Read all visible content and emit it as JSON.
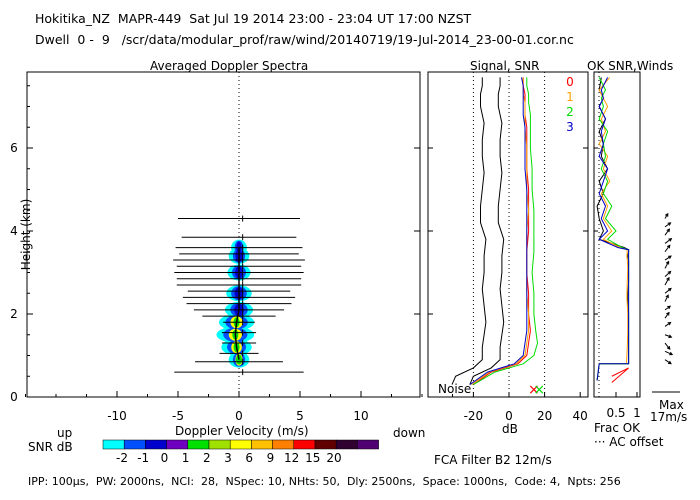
{
  "header": {
    "line1": "Hokitika_NZ  MAPR-449  Sat Jul 19 2014 23:00 - 23:04 UT 17:00 NZST",
    "line2": "Dwell  0 -  9   /scr/data/modular_prof/raw/wind/20140719/19-Jul-2014_23-00-01.cor.nc"
  },
  "footer": {
    "params": "IPP: 100μs,  PW: 2000ns,  NCI:  28,  NSpec: 10, NHts: 50,  Dly: 2500ns,  Space: 1000ns,  Code: 4,  Npts: 256",
    "filter": "FCA Filter B2 12m/s"
  },
  "colors": {
    "snr_scale": [
      "#00ffff",
      "#0050ff",
      "#0000cc",
      "#7000c0",
      "#00e000",
      "#a0e000",
      "#ffff00",
      "#ffc000",
      "#ff8000",
      "#ff0000",
      "#600000",
      "#300030",
      "#500070"
    ],
    "trace_0": "#ff0000",
    "trace_1": "#ffa000",
    "trace_2": "#00dd00",
    "trace_3": "#0000cc",
    "signal_black": "#000000"
  },
  "chart_data": [
    {
      "type": "heatmap",
      "title": "Averaged Doppler Spectra",
      "xlabel": "Doppler Velocity (m/s)",
      "ylabel": "Height (km)",
      "xlim": [
        -20,
        20
      ],
      "ylim": [
        0,
        7.8
      ],
      "x_ticks": [
        -10,
        -5,
        0,
        5,
        10
      ],
      "y_ticks": [
        0,
        2,
        4,
        6
      ],
      "x_ticks_labels": [
        "-10",
        "-5",
        "0",
        "5",
        "10"
      ],
      "y_ticks_labels": [
        "0",
        "2",
        "4",
        "6"
      ],
      "left_label": "up",
      "right_label": "down",
      "colorbar_label": "SNR dB",
      "colorbar_ticks": [
        "-2",
        "-1",
        "0",
        "1",
        "2",
        "3",
        "6",
        "9",
        "12",
        "15",
        "20"
      ],
      "noise_bars": [
        {
          "h": 0.6,
          "half": 5.3
        },
        {
          "h": 0.85,
          "half": 3.6
        },
        {
          "h": 1.05,
          "half": 1.6
        },
        {
          "h": 1.3,
          "half": 1.4
        },
        {
          "h": 1.55,
          "half": 1.4
        },
        {
          "h": 1.8,
          "half": 1.3
        },
        {
          "h": 1.95,
          "half": 3.0
        },
        {
          "h": 2.1,
          "half": 3.7
        },
        {
          "h": 2.25,
          "half": 4.3
        },
        {
          "h": 2.4,
          "half": 4.6
        },
        {
          "h": 2.55,
          "half": 4.2
        },
        {
          "h": 2.7,
          "half": 5.1
        },
        {
          "h": 2.85,
          "half": 5.1
        },
        {
          "h": 3.0,
          "half": 5.3
        },
        {
          "h": 3.15,
          "half": 5.1
        },
        {
          "h": 3.3,
          "half": 5.4
        },
        {
          "h": 3.45,
          "half": 4.9
        },
        {
          "h": 3.6,
          "half": 5.2
        },
        {
          "h": 3.85,
          "half": 4.7
        },
        {
          "h": 4.3,
          "half": 5.0
        }
      ],
      "spectrum_core": [
        {
          "h": 0.9,
          "v": 0.0,
          "w": 0.6
        },
        {
          "h": 1.2,
          "v": -0.2,
          "w": 1.0
        },
        {
          "h": 1.5,
          "v": -0.3,
          "w": 1.3
        },
        {
          "h": 1.8,
          "v": -0.2,
          "w": 1.2
        },
        {
          "h": 2.1,
          "v": 0.0,
          "w": 0.9
        },
        {
          "h": 2.5,
          "v": 0.0,
          "w": 0.8
        },
        {
          "h": 3.0,
          "v": 0.0,
          "w": 0.7
        },
        {
          "h": 3.4,
          "v": 0.0,
          "w": 0.6
        },
        {
          "h": 3.6,
          "v": 0.0,
          "w": 0.4
        }
      ]
    },
    {
      "type": "line",
      "title": "Signal, SNR",
      "xlabel": "dB",
      "ylabel": "Height (km)",
      "xlim": [
        -25,
        40
      ],
      "ylim": [
        0,
        7.8
      ],
      "x_ticks_labels": [
        "-20",
        "0",
        "20",
        "40"
      ],
      "noise_label": "Noise",
      "legend": [
        "0",
        "1",
        "2",
        "3"
      ],
      "series": [
        {
          "name": "Signal",
          "x": [
            -22,
            -20,
            -10,
            -5,
            -5,
            -4,
            -3,
            -4,
            -5,
            -4,
            -4,
            -3,
            -6,
            -6,
            -5,
            -4,
            -5,
            -5,
            -4,
            -6,
            -6,
            -5,
            -5
          ],
          "y": [
            0.3,
            0.5,
            0.7,
            0.9,
            1.2,
            1.5,
            1.8,
            2.2,
            2.6,
            3.0,
            3.4,
            3.8,
            4.2,
            4.6,
            5.0,
            5.4,
            5.8,
            6.2,
            6.6,
            7.0,
            7.3,
            7.5,
            7.7
          ]
        },
        {
          "name": "0",
          "x": [
            -20,
            -10,
            5,
            10,
            11,
            12,
            11,
            11,
            10,
            10,
            11,
            11,
            11,
            10,
            10,
            10,
            9,
            9,
            9,
            8,
            8
          ],
          "y": [
            0.3,
            0.6,
            0.8,
            1.0,
            1.3,
            1.6,
            2.0,
            2.5,
            3.0,
            3.5,
            4.0,
            4.5,
            5.0,
            5.5,
            6.0,
            6.5,
            6.8,
            7.1,
            7.3,
            7.5,
            7.7
          ]
        },
        {
          "name": "1",
          "x": [
            -21,
            -11,
            4,
            9,
            10,
            11,
            11,
            10,
            10,
            10,
            10,
            11,
            10,
            10,
            10,
            9,
            9,
            9,
            8,
            8,
            8
          ],
          "y": [
            0.3,
            0.6,
            0.8,
            1.0,
            1.3,
            1.6,
            2.0,
            2.5,
            3.0,
            3.5,
            4.0,
            4.5,
            5.0,
            5.5,
            6.0,
            6.5,
            6.8,
            7.1,
            7.3,
            7.5,
            7.7
          ]
        },
        {
          "name": "2",
          "x": [
            -20,
            -8,
            8,
            14,
            16,
            15,
            14,
            14,
            13,
            14,
            14,
            14,
            13,
            13,
            12,
            12,
            12,
            11,
            11,
            10,
            10
          ],
          "y": [
            0.3,
            0.6,
            0.8,
            1.0,
            1.3,
            1.6,
            2.0,
            2.5,
            3.0,
            3.5,
            4.0,
            4.5,
            5.0,
            5.5,
            6.0,
            6.5,
            6.8,
            7.1,
            7.3,
            7.5,
            7.7
          ]
        },
        {
          "name": "3",
          "x": [
            -22,
            -12,
            3,
            8,
            9,
            10,
            10,
            10,
            10,
            10,
            10,
            10,
            10,
            9,
            9,
            9,
            8,
            8,
            8,
            8,
            7
          ],
          "y": [
            0.3,
            0.6,
            0.8,
            1.0,
            1.3,
            1.6,
            2.0,
            2.5,
            3.0,
            3.5,
            4.0,
            4.5,
            5.0,
            5.5,
            6.0,
            6.5,
            6.8,
            7.1,
            7.3,
            7.5,
            7.7
          ]
        }
      ],
      "markers": [
        {
          "name": "0",
          "x": 14
        },
        {
          "name": "2",
          "x": 17
        }
      ]
    },
    {
      "type": "line",
      "title": "OK SNR,Winds",
      "xlabel": "Frac OK",
      "xlim": [
        0,
        1.2
      ],
      "ylim": [
        0,
        7.8
      ],
      "x_ticks_labels": [
        "0.5",
        "1"
      ],
      "footnote": "··· AC offset",
      "wind_max_label": "Max",
      "wind_max_value": "17m/s",
      "series": [
        {
          "name": "0",
          "x": [
            0.05,
            0.1,
            0.8,
            0.8,
            0.8,
            0.8,
            0.78,
            0.8,
            0.8,
            0.8,
            0.78,
            0.8,
            0.8,
            0.8,
            0.7,
            0.1,
            0.2,
            0.1,
            0.05,
            0.2,
            0.1,
            0.3,
            0.15,
            0.2,
            0.1,
            0.25,
            0.1,
            0.2,
            0.1,
            0.15
          ],
          "y": [
            0.4,
            0.8,
            0.8,
            1.2,
            1.6,
            2.0,
            2.4,
            2.8,
            3.1,
            3.3,
            3.4,
            3.5,
            3.5,
            3.55,
            3.6,
            3.8,
            4.0,
            4.3,
            4.6,
            4.9,
            5.2,
            5.5,
            5.8,
            6.1,
            6.4,
            6.7,
            7.0,
            7.2,
            7.4,
            7.7
          ]
        },
        {
          "name": "1",
          "x": [
            0.05,
            0.1,
            0.75,
            0.77,
            0.78,
            0.78,
            0.76,
            0.77,
            0.78,
            0.77,
            0.76,
            0.77,
            0.77,
            0.76,
            0.6,
            0.2,
            0.4,
            0.2,
            0.3,
            0.15,
            0.35,
            0.2,
            0.3,
            0.1,
            0.25,
            0.15,
            0.3,
            0.2,
            0.1,
            0.35
          ],
          "y": [
            0.4,
            0.8,
            0.8,
            1.2,
            1.6,
            2.0,
            2.4,
            2.8,
            3.1,
            3.3,
            3.4,
            3.5,
            3.5,
            3.55,
            3.6,
            3.8,
            4.0,
            4.3,
            4.6,
            4.9,
            5.2,
            5.5,
            5.8,
            6.1,
            6.4,
            6.7,
            7.0,
            7.2,
            7.4,
            7.7
          ]
        },
        {
          "name": "2",
          "x": [
            0.05,
            0.1,
            0.8,
            0.8,
            0.8,
            0.8,
            0.8,
            0.8,
            0.8,
            0.8,
            0.8,
            0.8,
            0.8,
            0.8,
            0.65,
            0.3,
            0.5,
            0.25,
            0.4,
            0.2,
            0.3,
            0.15,
            0.25,
            0.2,
            0.3,
            0.1,
            0.2,
            0.15,
            0.25,
            0.1
          ],
          "y": [
            0.4,
            0.8,
            0.8,
            1.2,
            1.6,
            2.0,
            2.4,
            2.8,
            3.1,
            3.3,
            3.4,
            3.5,
            3.5,
            3.55,
            3.6,
            3.8,
            4.0,
            4.3,
            4.6,
            4.9,
            5.2,
            5.5,
            5.8,
            6.1,
            6.4,
            6.7,
            7.0,
            7.2,
            7.4,
            7.7
          ]
        },
        {
          "name": "3",
          "x": [
            0.05,
            0.1,
            0.8,
            0.8,
            0.8,
            0.8,
            0.8,
            0.8,
            0.8,
            0.8,
            0.8,
            0.8,
            0.8,
            0.8,
            0.55,
            0.1,
            0.3,
            0.15,
            0.25,
            0.1,
            0.2,
            0.3,
            0.1,
            0.2,
            0.15,
            0.25,
            0.1,
            0.2,
            0.15,
            0.3
          ],
          "y": [
            0.4,
            0.8,
            0.8,
            1.2,
            1.6,
            2.0,
            2.4,
            2.8,
            3.1,
            3.3,
            3.4,
            3.5,
            3.5,
            3.55,
            3.6,
            3.8,
            4.0,
            4.3,
            4.6,
            4.9,
            5.2,
            5.5,
            5.8,
            6.1,
            6.4,
            6.7,
            7.0,
            7.2,
            7.4,
            7.7
          ]
        }
      ],
      "winds": [
        {
          "h": 0.9,
          "u": 1.5,
          "v": -1.0
        },
        {
          "h": 1.1,
          "u": 1.8,
          "v": -0.8
        },
        {
          "h": 1.3,
          "u": 1.2,
          "v": -1.5
        },
        {
          "h": 1.5,
          "u": 1.6,
          "v": -0.6
        },
        {
          "h": 1.7,
          "u": 1.4,
          "v": 1.0
        },
        {
          "h": 1.9,
          "u": 1.0,
          "v": 1.4
        },
        {
          "h": 2.1,
          "u": 1.3,
          "v": 0.9
        },
        {
          "h": 2.3,
          "u": 0.8,
          "v": 1.6
        },
        {
          "h": 2.5,
          "u": 1.5,
          "v": 1.2
        },
        {
          "h": 2.7,
          "u": 1.0,
          "v": 1.8
        },
        {
          "h": 2.9,
          "u": 1.4,
          "v": 1.3
        },
        {
          "h": 3.1,
          "u": 0.9,
          "v": 1.7
        },
        {
          "h": 3.3,
          "u": 1.5,
          "v": 1.0
        },
        {
          "h": 3.5,
          "u": 1.2,
          "v": 1.6
        },
        {
          "h": 3.7,
          "u": 1.6,
          "v": 1.2
        },
        {
          "h": 3.9,
          "u": 1.1,
          "v": 1.5
        },
        {
          "h": 4.1,
          "u": 1.4,
          "v": 1.0
        },
        {
          "h": 4.3,
          "u": 0.7,
          "v": 1.2
        }
      ]
    }
  ]
}
